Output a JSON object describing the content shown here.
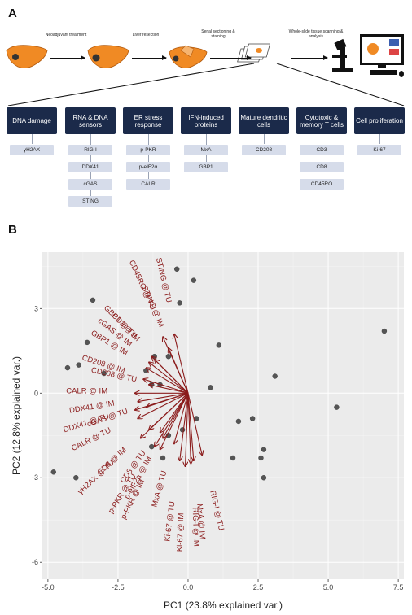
{
  "panel_a": {
    "label": "A",
    "steps": [
      "Neoadjuvant treatment",
      "Liver resection",
      "Serial sectioning & staining",
      "Whole-slide tissue scanning & analysis"
    ],
    "categories": [
      {
        "name": "DNA damage",
        "markers": [
          "γH2AX"
        ]
      },
      {
        "name": "RNA & DNA sensors",
        "markers": [
          "RIG-I",
          "DDX41",
          "cGAS",
          "STING"
        ]
      },
      {
        "name": "ER stress response",
        "markers": [
          "p-PKR",
          "p-eIF2α",
          "CALR"
        ]
      },
      {
        "name": "IFN-induced proteins",
        "markers": [
          "MxA",
          "GBP1"
        ]
      },
      {
        "name": "Mature dendritic cells",
        "markers": [
          "CD208"
        ]
      },
      {
        "name": "Cytotoxic & memory T cells",
        "markers": [
          "CD3",
          "CD8",
          "CD45RO"
        ]
      },
      {
        "name": "Cell proliferation",
        "markers": [
          "Ki-67"
        ]
      }
    ]
  },
  "panel_b": {
    "label": "B",
    "chart_data": {
      "type": "scatter",
      "subtype": "pca-biplot",
      "xlabel": "PC1 (23.8% explained var.)",
      "ylabel": "PC2 (12.8% explained var.)",
      "xlim": [
        -5.2,
        7.7
      ],
      "ylim": [
        -6.6,
        5.0
      ],
      "xticks": [
        -5.0,
        -2.5,
        0.0,
        2.5,
        5.0,
        7.5
      ],
      "yticks": [
        -6,
        -3,
        0,
        3
      ],
      "grid": true,
      "points": [
        [
          -0.4,
          4.4
        ],
        [
          -0.3,
          3.2
        ],
        [
          0.2,
          4.0
        ],
        [
          -3.4,
          3.3
        ],
        [
          1.1,
          1.7
        ],
        [
          -3.6,
          1.8
        ],
        [
          -3.0,
          0.7
        ],
        [
          -3.9,
          1.0
        ],
        [
          -4.3,
          0.9
        ],
        [
          -0.7,
          1.3
        ],
        [
          -1.2,
          1.3
        ],
        [
          -1.5,
          0.8
        ],
        [
          -1.3,
          0.3
        ],
        [
          -1.0,
          0.3
        ],
        [
          0.8,
          0.2
        ],
        [
          0.3,
          -0.9
        ],
        [
          1.8,
          -1.0
        ],
        [
          2.3,
          -0.9
        ],
        [
          3.1,
          0.6
        ],
        [
          7.0,
          2.2
        ],
        [
          5.3,
          -0.5
        ],
        [
          2.7,
          -2.0
        ],
        [
          2.6,
          -2.3
        ],
        [
          2.7,
          -3.0
        ],
        [
          1.6,
          -2.3
        ],
        [
          -0.2,
          -1.3
        ],
        [
          -0.7,
          -1.5
        ],
        [
          -4.8,
          -2.8
        ],
        [
          -4.0,
          -3.0
        ],
        [
          -1.3,
          -1.9
        ],
        [
          -0.9,
          -2.3
        ]
      ],
      "loadings": [
        {
          "label": "STING @ TU",
          "x": -0.5,
          "y": 2.1
        },
        {
          "label": "CD45RO @ TU",
          "x": -0.9,
          "y": 2.0
        },
        {
          "label": "STING @ IM",
          "x": -0.7,
          "y": 1.6
        },
        {
          "label": "GBP1 @ TU",
          "x": -1.3,
          "y": 1.3
        },
        {
          "label": "cGAS @ IM",
          "x": -1.4,
          "y": 1.1
        },
        {
          "label": "CD3 @ IM",
          "x": -1.2,
          "y": 1.2
        },
        {
          "label": "GBP1 @ IM",
          "x": -1.5,
          "y": 0.9
        },
        {
          "label": "CD208 @ IM",
          "x": -1.6,
          "y": 0.5
        },
        {
          "label": "CD208 @ TU",
          "x": -1.4,
          "y": 0.3
        },
        {
          "label": "CALR @ IM",
          "x": -1.9,
          "y": 0.0
        },
        {
          "label": "DDX41 @ IM",
          "x": -1.8,
          "y": -0.3
        },
        {
          "label": "cGAS @ TU",
          "x": -1.5,
          "y": -0.5
        },
        {
          "label": "DDX41 @ TU",
          "x": -1.9,
          "y": -0.6
        },
        {
          "label": "CALR @ TU",
          "x": -1.8,
          "y": -0.9
        },
        {
          "label": "CD8 @ IM",
          "x": -1.4,
          "y": -1.3
        },
        {
          "label": "γH2AX @ TU",
          "x": -1.7,
          "y": -1.6
        },
        {
          "label": "CD8 @ TU",
          "x": -1.0,
          "y": -1.4
        },
        {
          "label": "p-eIF2α @ IM",
          "x": -0.9,
          "y": -1.6
        },
        {
          "label": "p-PKR @ TU",
          "x": -1.2,
          "y": -1.9
        },
        {
          "label": "p-PKR @ IM",
          "x": -1.0,
          "y": -2.0
        },
        {
          "label": "MxA @ TU",
          "x": -0.5,
          "y": -1.8
        },
        {
          "label": "RIG-I @ TU",
          "x": 0.5,
          "y": -2.2
        },
        {
          "label": "Ki-67 @ TU",
          "x": -0.3,
          "y": -2.4
        },
        {
          "label": "Ki-67 @ IM",
          "x": -0.1,
          "y": -2.6
        },
        {
          "label": "RIG-I @ IM",
          "x": 0.1,
          "y": -2.5
        },
        {
          "label": "MxA @ IM",
          "x": 0.2,
          "y": -2.4
        }
      ]
    }
  },
  "colors": {
    "arrow": "#8b1c1c",
    "point": "#555555",
    "panel_bg": "#ebebeb",
    "category_bg": "#1b2a4a",
    "marker_bg": "#d6dcea",
    "organ": "#f08a24"
  }
}
